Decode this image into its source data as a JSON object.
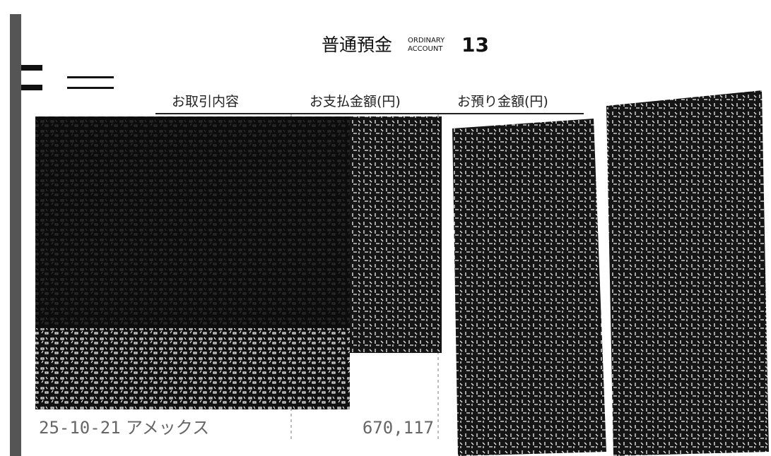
{
  "header": {
    "title": "普通預金",
    "subtitle_lines": [
      "ORDINARY",
      "ACCOUNT"
    ],
    "page_number": "13"
  },
  "table": {
    "columns": [
      "お取引内容",
      "お支払金額(円)",
      "お預り金額(円)"
    ],
    "rows": [
      {
        "date": "25-10-21",
        "description": "アメックス",
        "payment": "670,117"
      }
    ]
  }
}
